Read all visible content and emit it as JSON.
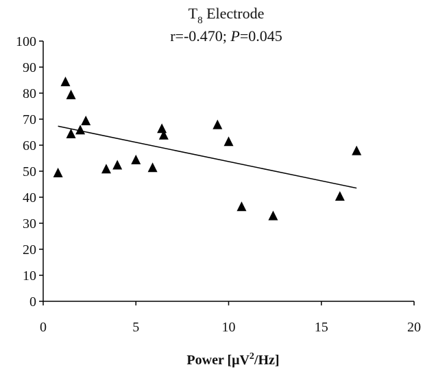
{
  "chart_data": {
    "type": "scatter",
    "title_line1": "T",
    "title_subscript": "8",
    "title_line1_rest": " Electrode",
    "title_line2_prefix": "r=-0.470; ",
    "title_line2_italic": "P",
    "title_line2_suffix": "=0.045",
    "xlabel_prefix": "Power [μV",
    "xlabel_superscript": "2",
    "xlabel_suffix": "/Hz]",
    "ylabel": "",
    "xlim": [
      0,
      20
    ],
    "ylim": [
      0,
      100
    ],
    "x_ticks": [
      0,
      5,
      10,
      15,
      20
    ],
    "y_ticks": [
      0,
      10,
      20,
      30,
      40,
      50,
      60,
      70,
      80,
      90,
      100
    ],
    "grid": false,
    "marker": "triangle",
    "marker_color": "#000000",
    "points": [
      {
        "x": 0.8,
        "y": 49.5
      },
      {
        "x": 1.2,
        "y": 84.5
      },
      {
        "x": 1.5,
        "y": 79.5
      },
      {
        "x": 1.5,
        "y": 64.5
      },
      {
        "x": 2.0,
        "y": 66.0
      },
      {
        "x": 2.3,
        "y": 69.5
      },
      {
        "x": 3.4,
        "y": 51.0
      },
      {
        "x": 4.0,
        "y": 52.5
      },
      {
        "x": 5.0,
        "y": 54.5
      },
      {
        "x": 5.9,
        "y": 51.5
      },
      {
        "x": 6.4,
        "y": 66.5
      },
      {
        "x": 6.5,
        "y": 64.0
      },
      {
        "x": 9.4,
        "y": 68.0
      },
      {
        "x": 10.0,
        "y": 61.5
      },
      {
        "x": 10.7,
        "y": 36.5
      },
      {
        "x": 12.4,
        "y": 33.0
      },
      {
        "x": 16.0,
        "y": 40.5
      },
      {
        "x": 16.9,
        "y": 58.0
      }
    ],
    "trendline": {
      "x": [
        0.8,
        16.9
      ],
      "y": [
        67.3,
        43.5
      ]
    }
  }
}
